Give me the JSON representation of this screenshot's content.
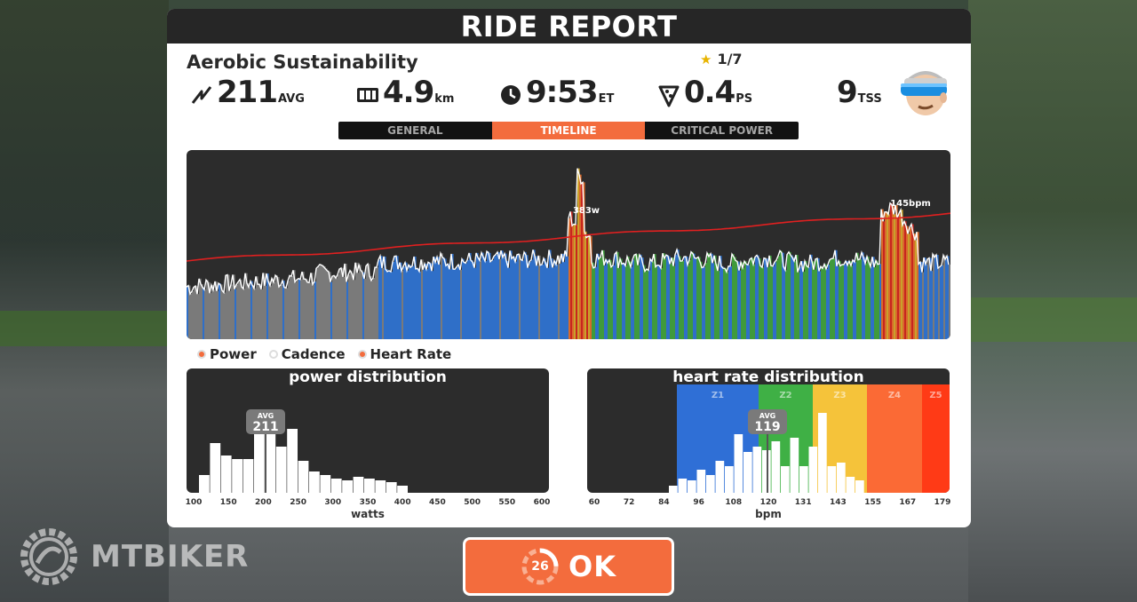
{
  "header": {
    "title": "RIDE REPORT"
  },
  "workout": {
    "name": "Aerobic Sustainability",
    "rating": "1/7"
  },
  "stats": [
    {
      "icon": "power-bolt-icon",
      "value": "211",
      "unit": "AVG"
    },
    {
      "icon": "odometer-icon",
      "value": "4.9",
      "unit": "km"
    },
    {
      "icon": "clock-icon",
      "value": "9:53",
      "unit": "ET"
    },
    {
      "icon": "pizza-slice-icon",
      "value": "0.4",
      "unit": "PS"
    },
    {
      "icon": "",
      "value": "9",
      "unit": "TSS"
    }
  ],
  "tabs": [
    {
      "label": "GENERAL",
      "active": false
    },
    {
      "label": "TIMELINE",
      "active": true
    },
    {
      "label": "CRITICAL POWER",
      "active": false
    }
  ],
  "timeline": {
    "power_peak_label": "383w",
    "hr_peak_label": "145bpm",
    "zone_colors": {
      "gray": "#7a7a7a",
      "blue": "#2f6fc8",
      "green": "#3f9a3c",
      "yellow": "#c9a12b",
      "orange": "#d96a2b",
      "red": "#c8261f"
    },
    "hr_line_color": "#e02020"
  },
  "legend": [
    {
      "label": "Power",
      "color": "#f36c3d"
    },
    {
      "label": "Cadence",
      "color": "#ffffff"
    },
    {
      "label": "Heart Rate",
      "color": "#f36c3d"
    }
  ],
  "power_distribution": {
    "title": "power distribution",
    "avg_label": "AVG",
    "avg_value": "211",
    "x_ticks": [
      "100",
      "150",
      "200",
      "250",
      "300",
      "350",
      "400",
      "450",
      "500",
      "550",
      "600"
    ],
    "axis_title": "watts"
  },
  "hr_distribution": {
    "title": "heart rate distribution",
    "avg_label": "AVG",
    "avg_value": "119",
    "x_ticks": [
      "60",
      "72",
      "84",
      "96",
      "108",
      "120",
      "131",
      "143",
      "155",
      "167",
      "179"
    ],
    "axis_title": "bpm",
    "zones": [
      {
        "label": "Z1",
        "color": "#2f6fd6"
      },
      {
        "label": "Z2",
        "color": "#3fb045"
      },
      {
        "label": "Z3",
        "color": "#f5c33a"
      },
      {
        "label": "Z4",
        "color": "#fb6a35"
      },
      {
        "label": "Z5",
        "color": "#ff3a16"
      }
    ]
  },
  "ok_button": {
    "label": "OK",
    "countdown": "26"
  },
  "watermark": {
    "text": "MTBIKER"
  }
}
